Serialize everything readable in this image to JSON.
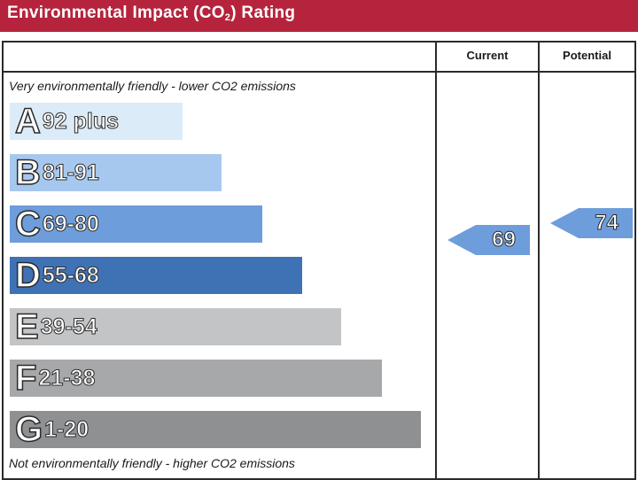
{
  "header": {
    "title_prefix": "Environmental Impact (CO",
    "title_subscript": "2",
    "title_suffix": ") Rating"
  },
  "columns": {
    "current": "Current",
    "potential": "Potential"
  },
  "notes": {
    "top": "Very environmentally friendly - lower CO2 emissions",
    "bottom": "Not environmentally friendly - higher CO2 emissions"
  },
  "bands": [
    {
      "letter": "A",
      "range": "92 plus",
      "color": "#dcebf8"
    },
    {
      "letter": "B",
      "range": "81-91",
      "color": "#a7c8ee"
    },
    {
      "letter": "C",
      "range": "69-80",
      "color": "#6d9ddb"
    },
    {
      "letter": "D",
      "range": "55-68",
      "color": "#3f72b5"
    },
    {
      "letter": "E",
      "range": "39-54",
      "color": "#c3c4c6"
    },
    {
      "letter": "F",
      "range": "21-38",
      "color": "#a7a8aa"
    },
    {
      "letter": "G",
      "range": "1-20",
      "color": "#8f9092"
    }
  ],
  "ratings": {
    "current": {
      "value": "69",
      "color": "#6d9ddb"
    },
    "potential": {
      "value": "74",
      "color": "#6d9ddb"
    }
  }
}
